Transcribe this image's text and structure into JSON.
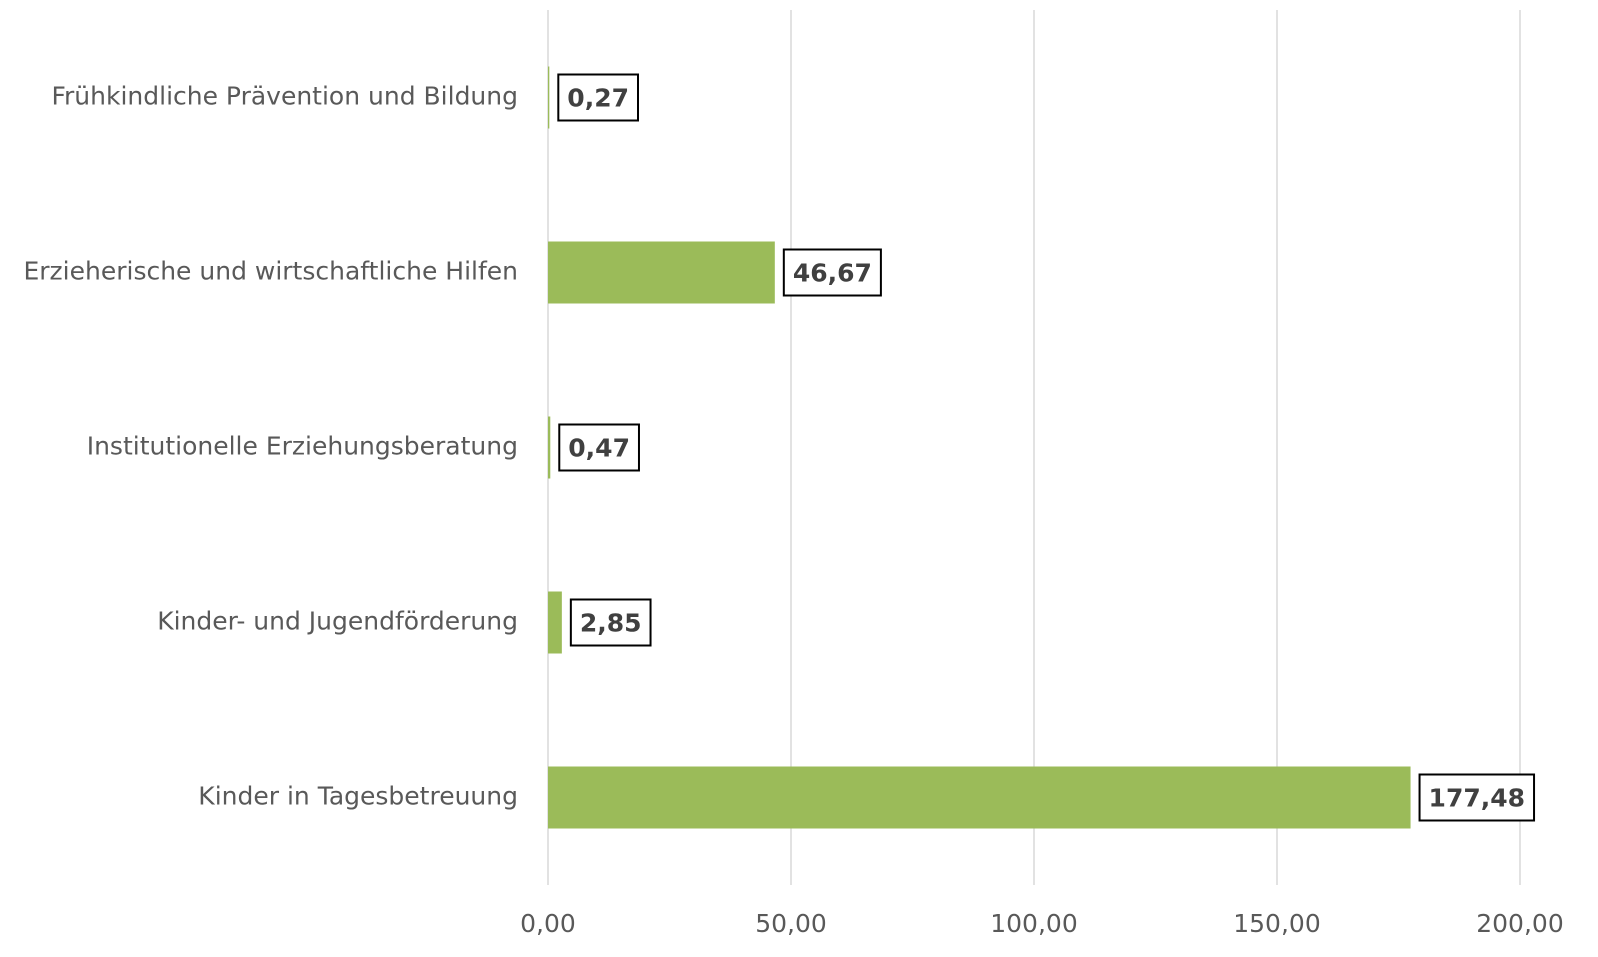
{
  "chart_data": {
    "type": "hbar",
    "categories": [
      "Frühkindliche Prävention und Bildung",
      "Erzieherische und wirtschaftliche Hilfen",
      "Institutionelle Erziehungsberatung",
      "Kinder- und Jugendförderung",
      "Kinder in Tagesbetreuung"
    ],
    "values": [
      0.27,
      46.67,
      0.47,
      2.85,
      177.48
    ],
    "value_labels": [
      "0,27",
      "46,67",
      "0,47",
      "2,85",
      "177,48"
    ],
    "color": "#9bbb59",
    "xlim": [
      0,
      200
    ],
    "xticks": [
      {
        "value": 0,
        "label": "0,00"
      },
      {
        "value": 50,
        "label": "50,00"
      },
      {
        "value": 100,
        "label": "100,00"
      },
      {
        "value": 150,
        "label": "150,00"
      },
      {
        "value": 200,
        "label": "200,00"
      }
    ],
    "grid": true
  }
}
